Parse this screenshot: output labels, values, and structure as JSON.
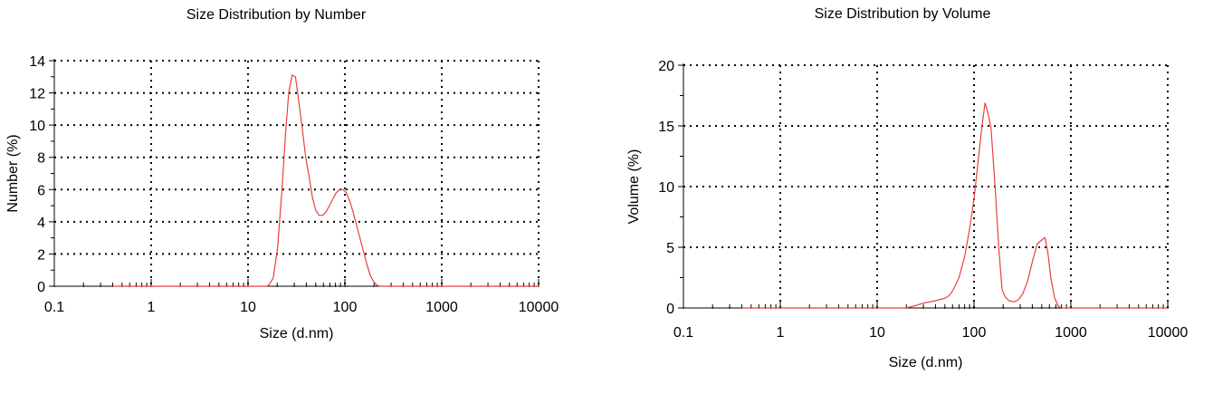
{
  "chart_data": [
    {
      "type": "line",
      "title": "Size Distribution by Number",
      "xlabel": "Size (d.nm)",
      "ylabel": "Number (%)",
      "x_scale": "log",
      "xlim": [
        0.1,
        10000
      ],
      "ylim": [
        0,
        14
      ],
      "x_ticks": [
        0.1,
        1,
        10,
        100,
        1000,
        10000
      ],
      "x_tick_labels": [
        "0.1",
        "1",
        "10",
        "100",
        "1000",
        "10000"
      ],
      "y_ticks": [
        0,
        2,
        4,
        6,
        8,
        10,
        12,
        14
      ],
      "y_tick_labels": [
        "0",
        "2",
        "4",
        "6",
        "8",
        "10",
        "12",
        "14"
      ],
      "grid": true,
      "line_color": "#e8413b",
      "series": [
        {
          "x": [
            0.4,
            15.7,
            16.5,
            18.2,
            20.2,
            22.4,
            24.4,
            26.3,
            28.5,
            30.9,
            33.5,
            36.3,
            39.4,
            42.7,
            46.3,
            50.1,
            54.3,
            58.9,
            63.8,
            69.2,
            75.0,
            81.3,
            88.1,
            95.5,
            103.5,
            112.2,
            121.6,
            131.8,
            142.9,
            154.9,
            167.9,
            182.0,
            197.2,
            213.8,
            231.6,
            251.0,
            10000
          ],
          "y": [
            0,
            0,
            0.1,
            0.5,
            2.4,
            6.0,
            9.5,
            12.0,
            13.1,
            13.0,
            11.4,
            9.8,
            8.0,
            6.8,
            5.5,
            4.7,
            4.4,
            4.4,
            4.6,
            5.0,
            5.4,
            5.8,
            6.0,
            6.0,
            5.8,
            5.3,
            4.6,
            3.8,
            3.0,
            2.2,
            1.4,
            0.7,
            0.3,
            0.05,
            0,
            0,
            0
          ]
        }
      ]
    },
    {
      "type": "line",
      "title": "Size Distribution by Volume",
      "xlabel": "Size (d.nm)",
      "ylabel": "Volume (%)",
      "x_scale": "log",
      "xlim": [
        0.1,
        10000
      ],
      "ylim": [
        0,
        20
      ],
      "x_ticks": [
        0.1,
        1,
        10,
        100,
        1000,
        10000
      ],
      "x_tick_labels": [
        "0.1",
        "1",
        "10",
        "100",
        "1000",
        "10000"
      ],
      "y_ticks": [
        0,
        5,
        10,
        15,
        20
      ],
      "y_tick_labels": [
        "0",
        "5",
        "10",
        "15",
        "20"
      ],
      "grid": true,
      "line_color": "#e8413b",
      "series": [
        {
          "x": [
            0.4,
            15,
            20,
            25,
            30,
            35,
            40,
            50,
            55,
            60,
            70,
            80,
            90,
            100,
            110,
            120,
            130,
            140,
            150,
            165,
            180,
            195,
            210,
            230,
            260,
            290,
            320,
            360,
            400,
            450,
            500,
            540,
            580,
            620,
            680,
            750,
            820,
            900,
            1000,
            10000
          ],
          "y": [
            0,
            0,
            0,
            0.2,
            0.4,
            0.5,
            0.6,
            0.8,
            1.0,
            1.4,
            2.5,
            4.2,
            6.5,
            9.0,
            12.0,
            14.8,
            16.9,
            16.0,
            14.8,
            10.0,
            5.0,
            1.5,
            0.9,
            0.6,
            0.5,
            0.7,
            1.2,
            2.3,
            3.8,
            5.3,
            5.6,
            5.8,
            4.5,
            2.5,
            0.8,
            0.1,
            0,
            0,
            0,
            0
          ]
        }
      ]
    }
  ]
}
